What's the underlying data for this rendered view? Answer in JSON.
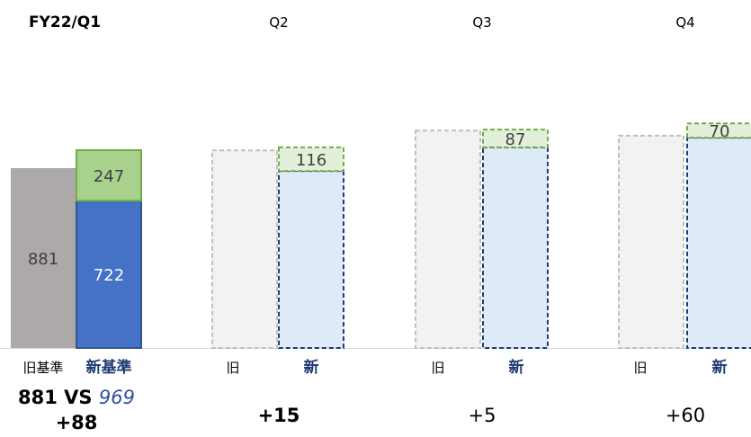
{
  "chart_data": {
    "type": "bar",
    "stacked": true,
    "groups": [
      {
        "title": "FY22/Q1",
        "bars": [
          {
            "label": "旧基準",
            "total": 881,
            "segments": [
              {
                "value": 881,
                "color": "#ADA9A8",
                "label": "881"
              }
            ]
          },
          {
            "label": "新基準",
            "total": 969,
            "segments": [
              {
                "value": 722,
                "color": "#4472C4",
                "label": "722"
              },
              {
                "value": 247,
                "color": "#A9D18E",
                "label": "247"
              }
            ]
          }
        ],
        "comparison": "881 VS 969",
        "diff": "+88"
      },
      {
        "title": "Q2",
        "bars": [
          {
            "label": "旧",
            "total": 968,
            "style": "dashed-outline"
          },
          {
            "label": "新",
            "total": 983,
            "segments": [
              {
                "value": 867,
                "color": "#DEEBF7",
                "label": ""
              },
              {
                "value": 116,
                "color": "#E2F0D9",
                "label": "116"
              }
            ]
          }
        ],
        "diff": "+15"
      },
      {
        "title": "Q3",
        "bars": [
          {
            "label": "旧",
            "total": 1065,
            "style": "dashed-outline"
          },
          {
            "label": "新",
            "total": 1070,
            "segments": [
              {
                "value": 983,
                "color": "#DEEBF7",
                "label": ""
              },
              {
                "value": 87,
                "color": "#E2F0D9",
                "label": "87"
              }
            ]
          }
        ],
        "diff": "+5"
      },
      {
        "title": "Q4",
        "bars": [
          {
            "label": "旧",
            "total": 1040,
            "style": "dashed-outline"
          },
          {
            "label": "新",
            "total": 1100,
            "segments": [
              {
                "value": 1030,
                "color": "#DEEBF7",
                "label": ""
              },
              {
                "value": 70,
                "color": "#E2F0D9",
                "label": "70"
              }
            ]
          }
        ],
        "diff": "+60"
      }
    ],
    "colors": {
      "old_basis": "#ADA9A8",
      "new_base": "#4472C4",
      "new_top": "#A9D18E",
      "new_label": "#1F3B73"
    }
  }
}
